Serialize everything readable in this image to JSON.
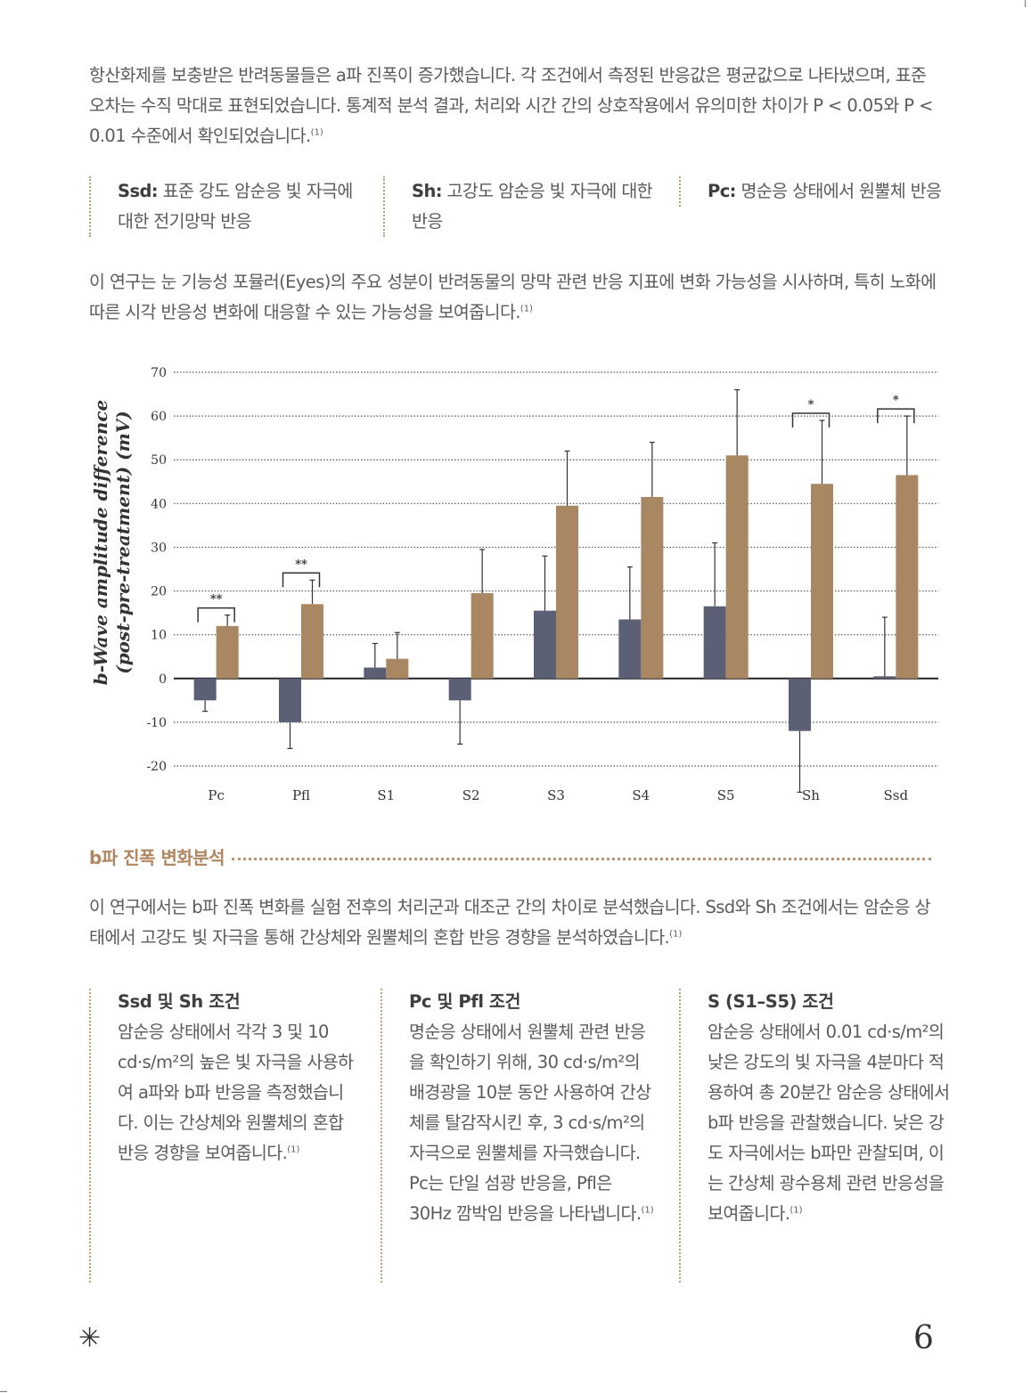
{
  "intro_text": "항산화제를 보충받은 반려동물들은 a파 진폭이 증가했습니다. 각 조건에서 측정된 반응값은 평균값으로 나타냈으며, 표준 오차는 수직 막대로 표현되었습니다. 통계적 분석 결과, 처리와 시간 간의 상호작용에서 유의미한 차이가 P < 0.05와 P < 0.01 수준에서 확인되었습니다.",
  "intro_ref": "(1)",
  "definitions": [
    {
      "term": "Ssd:",
      "desc": "표준 강도 암순응 빛 자극에 대한 전기망막 반응"
    },
    {
      "term": "Sh:",
      "desc": "고강도 암순응 빛 자극에 대한 반응"
    },
    {
      "term": "Pc:",
      "desc": "명순응 상태에서 원뿔체 반응"
    }
  ],
  "study_text": "이 연구는 눈 기능성 포뮬러(Eyes)의 주요 성분이 반려동물의 망막 관련 반응 지표에 변화 가능성을 시사하며, 특히 노화에 따른 시각 반응성 변화에 대응할 수 있는 가능성을 보여줍니다.",
  "study_ref": "(1)",
  "chart_data": {
    "type": "bar",
    "ylabel_line1": "b-Wave amplitude difference",
    "ylabel_line2": "(post-pre-treatment) (mV)",
    "categories": [
      "Pc",
      "Pfl",
      "S1",
      "S2",
      "S3",
      "S4",
      "S5",
      "Sh",
      "Ssd"
    ],
    "yticks": [
      "70",
      "60",
      "50",
      "40",
      "30",
      "20",
      "10",
      "0",
      "-10",
      "-20"
    ],
    "ylim": [
      -20,
      70
    ],
    "grid": true,
    "series": [
      {
        "color": "#5b6075",
        "values": [
          -5,
          -10,
          2.5,
          -5,
          15.5,
          13.5,
          16.5,
          -12,
          0.5
        ],
        "errors": [
          2.5,
          6,
          5.5,
          10,
          12.5,
          12,
          14.5,
          14,
          13.5
        ]
      },
      {
        "color": "#a98763",
        "values": [
          12,
          17,
          4.5,
          19.5,
          39.5,
          41.5,
          51,
          44.5,
          46.5
        ],
        "errors": [
          2.5,
          5.5,
          6,
          10,
          12.5,
          12.5,
          15,
          14.5,
          13.5
        ]
      }
    ],
    "significance": [
      {
        "category": "Pc",
        "label": "**"
      },
      {
        "category": "Pfl",
        "label": "**"
      },
      {
        "category": "Sh",
        "label": "*"
      },
      {
        "category": "Ssd",
        "label": "*"
      }
    ]
  },
  "section_title": "b파 진폭 변화분석",
  "analysis_text": "이 연구에서는 b파 진폭 변화를 실험 전후의 처리군과 대조군 간의 차이로 분석했습니다. Ssd와 Sh 조건에서는 암순응 상태에서 고강도 빛 자극을 통해 간상체와 원뿔체의 혼합 반응 경향을 분석하였습니다.",
  "analysis_ref": "(1)",
  "columns": [
    {
      "title": "Ssd 및 Sh 조건",
      "text": "암순응 상태에서 각각 3 및 10 cd·s/m²의 높은 빛 자극을 사용하여 a파와 b파 반응을 측정했습니다. 이는 간상체와 원뿔체의 혼합 반응 경향을 보여줍니다.",
      "ref": "(1)"
    },
    {
      "title": "Pc 및 Pfl 조건",
      "text": "명순응 상태에서 원뿔체 관련 반응을 확인하기 위해, 30 cd·s/m²의 배경광을 10분 동안 사용하여 간상체를 탈감작시킨 후, 3 cd·s/m²의 자극으로 원뿔체를 자극했습니다. Pc는 단일 섬광 반응을, Pfl은 30Hz 깜박임 반응을 나타냅니다.",
      "ref": "(1)"
    },
    {
      "title": "S (S1–S5) 조건",
      "text": "암순응 상태에서 0.01 cd·s/m²의 낮은 강도의 빛 자극을 4분마다 적용하여 총 20분간 암순응 상태에서 b파 반응을 관찰했습니다. 낮은 강도 자극에서는 b파만 관찰되며, 이는 간상체 광수용체 관련 반응성을 보여줍니다.",
      "ref": "(1)"
    }
  ],
  "page_number": "6",
  "ornament_icon": "sparkle-star-icon"
}
